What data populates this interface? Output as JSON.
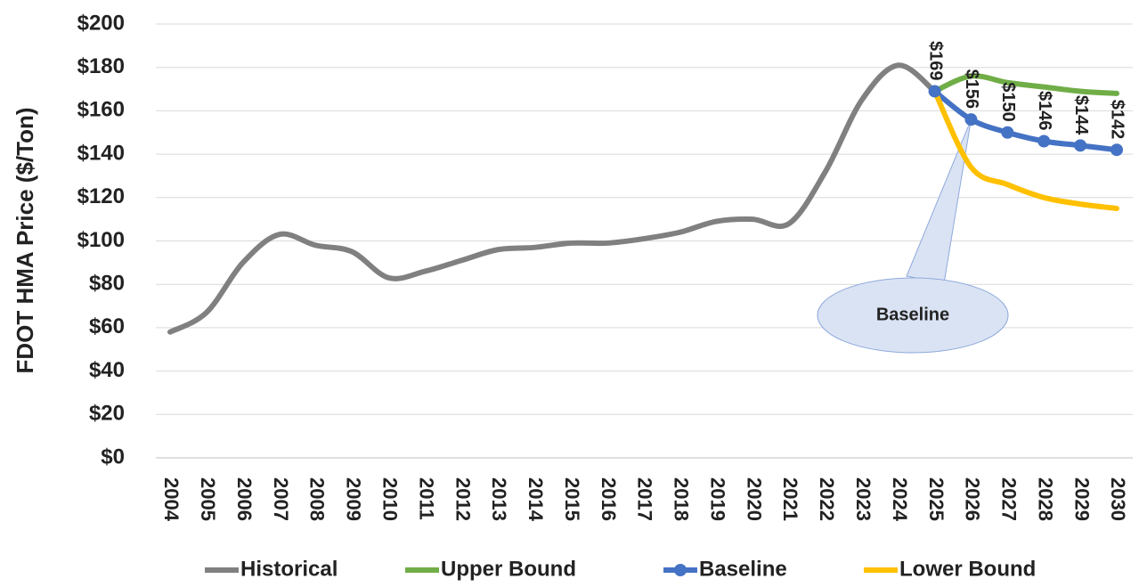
{
  "chart_data": {
    "type": "line",
    "y_label": "FDOT HMA Price ($/Ton)",
    "categories": [
      "2004",
      "2005",
      "2006",
      "2007",
      "2008",
      "2009",
      "2010",
      "2011",
      "2012",
      "2013",
      "2014",
      "2015",
      "2016",
      "2017",
      "2018",
      "2019",
      "2020",
      "2021",
      "2022",
      "2023",
      "2024",
      "2025",
      "2026",
      "2027",
      "2028",
      "2029",
      "2030"
    ],
    "series": [
      {
        "name": "Historical",
        "color": "#808080",
        "markers": false,
        "values": [
          58,
          67,
          90,
          103,
          98,
          95,
          83,
          86,
          91,
          96,
          97,
          99,
          99,
          101,
          104,
          109,
          110,
          108,
          132,
          165,
          181,
          169,
          null,
          null,
          null,
          null,
          null
        ]
      },
      {
        "name": "Upper Bound",
        "color": "#70ad47",
        "markers": false,
        "values": [
          null,
          null,
          null,
          null,
          null,
          null,
          null,
          null,
          null,
          null,
          null,
          null,
          null,
          null,
          null,
          null,
          null,
          null,
          null,
          null,
          null,
          169,
          176,
          173,
          171,
          169,
          168
        ]
      },
      {
        "name": "Baseline",
        "color": "#4472c4",
        "markers": true,
        "values": [
          null,
          null,
          null,
          null,
          null,
          null,
          null,
          null,
          null,
          null,
          null,
          null,
          null,
          null,
          null,
          null,
          null,
          null,
          null,
          null,
          null,
          169,
          156,
          150,
          146,
          144,
          142
        ],
        "value_labels": [
          null,
          null,
          null,
          null,
          null,
          null,
          null,
          null,
          null,
          null,
          null,
          null,
          null,
          null,
          null,
          null,
          null,
          null,
          null,
          null,
          null,
          "$169",
          "$156",
          "$150",
          "$146",
          "$144",
          "$142"
        ]
      },
      {
        "name": "Lower Bound",
        "color": "#ffc000",
        "markers": false,
        "values": [
          null,
          null,
          null,
          null,
          null,
          null,
          null,
          null,
          null,
          null,
          null,
          null,
          null,
          null,
          null,
          null,
          null,
          null,
          null,
          null,
          null,
          169,
          134,
          126,
          120,
          117,
          115
        ]
      }
    ],
    "ylim": [
      0,
      200
    ],
    "yticks": [
      {
        "value": 0,
        "label": "$0"
      },
      {
        "value": 20,
        "label": "$20"
      },
      {
        "value": 40,
        "label": "$40"
      },
      {
        "value": 60,
        "label": "$60"
      },
      {
        "value": 80,
        "label": "$80"
      },
      {
        "value": 100,
        "label": "$100"
      },
      {
        "value": 120,
        "label": "$120"
      },
      {
        "value": 140,
        "label": "$140"
      },
      {
        "value": 160,
        "label": "$160"
      },
      {
        "value": 180,
        "label": "$180"
      },
      {
        "value": 200,
        "label": "$200"
      }
    ],
    "grid": true,
    "legend": "bottom",
    "annotation": "Baseline"
  }
}
